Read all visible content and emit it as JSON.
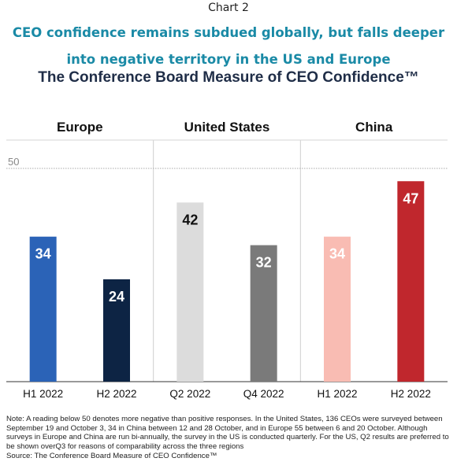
{
  "header": {
    "chart_label": "Chart 2",
    "subtitle": "CEO confidence remains subdued globally, but falls deeper into negative territory in the US and Europe",
    "title": "The Conference Board Measure of CEO Confidence™"
  },
  "chart_data": {
    "type": "bar",
    "groups": [
      "Europe",
      "United States",
      "China"
    ],
    "categories": [
      "H1 2022",
      "H2 2022",
      "Q2 2022",
      "Q4 2022",
      "H1 2022",
      "H2 2022"
    ],
    "category_group": [
      0,
      0,
      1,
      1,
      2,
      2
    ],
    "values": [
      34,
      24,
      42,
      32,
      34,
      47
    ],
    "bar_colors": [
      "#2b63b7",
      "#0d2444",
      "#dcdcdc",
      "#7a7a7a",
      "#f9bcb3",
      "#c0272d"
    ],
    "label_colors": [
      "#ffffff",
      "#ffffff",
      "#111111",
      "#ffffff",
      "#ffffff",
      "#ffffff"
    ],
    "reference_line": {
      "value": 50,
      "label": "50"
    },
    "ylim": [
      0,
      55
    ],
    "grid": false
  },
  "footer": {
    "note": "Note: A reading below 50 denotes more negative than positive responses. In the United States, 136 CEOs were surveyed between September 19 and October 3, 34 in China between 12 and 28 October, and in Europe 55 between 6 and 20 October. Although surveys in Europe and China are run bi-annually, the survey in the US is conducted quarterly. For the US, Q2 results are preferred to be shown overQ3 for reasons of comparability across the three regions",
    "source": "Source: The Conference Board Measure of CEO Confidence™"
  }
}
